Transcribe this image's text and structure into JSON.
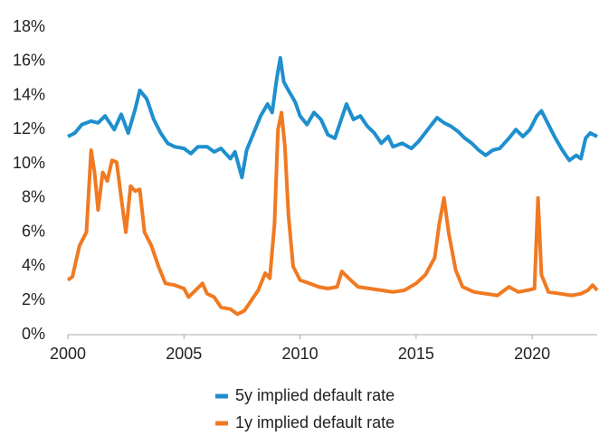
{
  "chart_data": {
    "type": "line",
    "xlim": [
      2000,
      2022.8
    ],
    "xticks": [
      2000,
      2005,
      2010,
      2015,
      2020
    ],
    "ylim": [
      0,
      18
    ],
    "yticks": [
      {
        "value": 0,
        "label": "0%"
      },
      {
        "value": 2,
        "label": "2%"
      },
      {
        "value": 4,
        "label": "4%"
      },
      {
        "value": 6,
        "label": "6%"
      },
      {
        "value": 8,
        "label": "8%"
      },
      {
        "value": 10,
        "label": "10%"
      },
      {
        "value": 12,
        "label": "12%"
      },
      {
        "value": 14,
        "label": "14%"
      },
      {
        "value": 16,
        "label": "16%"
      },
      {
        "value": 18,
        "label": "18%"
      }
    ],
    "grid": false,
    "legend": "bottom",
    "series": [
      {
        "name": "5y implied default rate",
        "color": "#1f8fce",
        "x": [
          2000.0,
          2000.3,
          2000.6,
          2001.0,
          2001.3,
          2001.6,
          2002.0,
          2002.3,
          2002.6,
          2002.9,
          2003.1,
          2003.4,
          2003.7,
          2004.0,
          2004.3,
          2004.6,
          2005.0,
          2005.3,
          2005.6,
          2006.0,
          2006.3,
          2006.6,
          2007.0,
          2007.2,
          2007.5,
          2007.7,
          2008.0,
          2008.3,
          2008.6,
          2008.8,
          2009.0,
          2009.15,
          2009.3,
          2009.5,
          2009.8,
          2010.0,
          2010.3,
          2010.6,
          2010.9,
          2011.2,
          2011.5,
          2011.8,
          2012.0,
          2012.3,
          2012.6,
          2012.9,
          2013.2,
          2013.5,
          2013.8,
          2014.0,
          2014.4,
          2014.8,
          2015.1,
          2015.5,
          2015.9,
          2016.2,
          2016.5,
          2016.8,
          2017.1,
          2017.4,
          2017.7,
          2018.0,
          2018.3,
          2018.6,
          2019.0,
          2019.3,
          2019.6,
          2019.9,
          2020.2,
          2020.4,
          2020.7,
          2021.0,
          2021.3,
          2021.6,
          2021.9,
          2022.1,
          2022.3,
          2022.5,
          2022.8
        ],
        "values": [
          11.6,
          11.8,
          12.3,
          12.5,
          12.4,
          12.8,
          12.0,
          12.9,
          11.8,
          13.2,
          14.3,
          13.8,
          12.6,
          11.8,
          11.2,
          11.0,
          10.9,
          10.6,
          11.0,
          11.0,
          10.7,
          10.9,
          10.3,
          10.7,
          9.2,
          10.8,
          11.8,
          12.8,
          13.5,
          13.0,
          15.0,
          16.2,
          14.8,
          14.3,
          13.6,
          12.8,
          12.3,
          13.0,
          12.6,
          11.7,
          11.5,
          12.7,
          13.5,
          12.6,
          12.8,
          12.2,
          11.8,
          11.2,
          11.6,
          11.0,
          11.2,
          10.9,
          11.3,
          12.0,
          12.7,
          12.4,
          12.2,
          11.9,
          11.5,
          11.2,
          10.8,
          10.5,
          10.8,
          10.9,
          11.5,
          12.0,
          11.6,
          12.0,
          12.8,
          13.1,
          12.3,
          11.5,
          10.8,
          10.2,
          10.5,
          10.3,
          11.5,
          11.8,
          11.6
        ]
      },
      {
        "name": "1y implied default rate",
        "color": "#f07a22",
        "x": [
          2000.0,
          2000.2,
          2000.5,
          2000.8,
          2001.0,
          2001.15,
          2001.3,
          2001.5,
          2001.7,
          2001.9,
          2002.1,
          2002.3,
          2002.5,
          2002.7,
          2002.9,
          2003.1,
          2003.3,
          2003.6,
          2003.9,
          2004.2,
          2004.6,
          2005.0,
          2005.2,
          2005.5,
          2005.8,
          2006.0,
          2006.3,
          2006.6,
          2007.0,
          2007.3,
          2007.6,
          2007.9,
          2008.2,
          2008.5,
          2008.7,
          2008.9,
          2009.05,
          2009.2,
          2009.35,
          2009.5,
          2009.7,
          2010.0,
          2010.4,
          2010.8,
          2011.2,
          2011.6,
          2011.8,
          2012.1,
          2012.5,
          2013.0,
          2013.5,
          2014.0,
          2014.5,
          2015.0,
          2015.4,
          2015.8,
          2016.0,
          2016.2,
          2016.4,
          2016.7,
          2017.0,
          2017.5,
          2018.0,
          2018.5,
          2019.0,
          2019.4,
          2019.8,
          2020.1,
          2020.25,
          2020.4,
          2020.7,
          2021.2,
          2021.7,
          2022.1,
          2022.4,
          2022.6,
          2022.8
        ],
        "values": [
          3.2,
          3.4,
          5.2,
          6.0,
          10.8,
          9.5,
          7.3,
          9.5,
          9.0,
          10.2,
          10.1,
          8.0,
          6.0,
          8.7,
          8.4,
          8.5,
          6.0,
          5.2,
          4.0,
          3.0,
          2.9,
          2.7,
          2.2,
          2.6,
          3.0,
          2.4,
          2.2,
          1.6,
          1.5,
          1.2,
          1.4,
          2.0,
          2.6,
          3.6,
          3.3,
          6.5,
          12.0,
          13.0,
          11.0,
          7.0,
          4.0,
          3.2,
          3.0,
          2.8,
          2.7,
          2.8,
          3.7,
          3.3,
          2.8,
          2.7,
          2.6,
          2.5,
          2.6,
          3.0,
          3.5,
          4.5,
          6.5,
          8.0,
          6.0,
          3.8,
          2.8,
          2.5,
          2.4,
          2.3,
          2.8,
          2.5,
          2.6,
          2.7,
          8.0,
          3.5,
          2.5,
          2.4,
          2.3,
          2.4,
          2.6,
          2.9,
          2.6
        ]
      }
    ]
  }
}
